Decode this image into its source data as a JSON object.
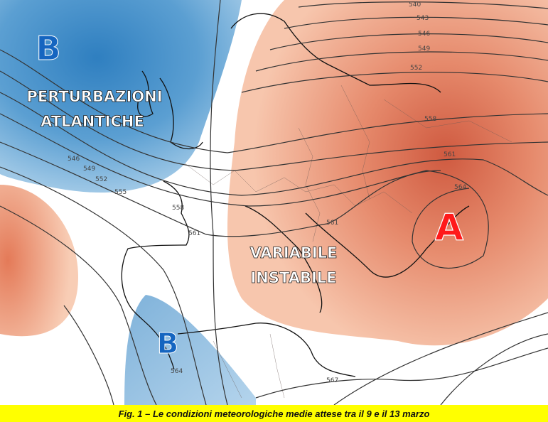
{
  "map": {
    "systems": [
      {
        "symbol": "B",
        "type": "low",
        "color": "#1565c0"
      },
      {
        "symbol": "B",
        "type": "low",
        "color": "#1565c0"
      },
      {
        "symbol": "A",
        "type": "high",
        "color": "#ff1a1a"
      }
    ],
    "region_labels": {
      "atlantic_line1": "PERTURBAZIONI",
      "atlantic_line2": "ATLANTICHE",
      "central_line1": "VARIABILE",
      "central_line2": "INSTABILE"
    },
    "contour_labels": [
      "540",
      "543",
      "546",
      "549",
      "552",
      "558",
      "561",
      "564",
      "546",
      "549",
      "552",
      "555",
      "558",
      "561",
      "561",
      "564",
      "567"
    ],
    "colors": {
      "low_anomaly": "#3c8cc8",
      "high_anomaly": "#e0694a",
      "isolines": "#333333"
    }
  },
  "caption": "Fig. 1 – Le condizioni meteorologiche medie attese tra il 9 e il 13 marzo"
}
